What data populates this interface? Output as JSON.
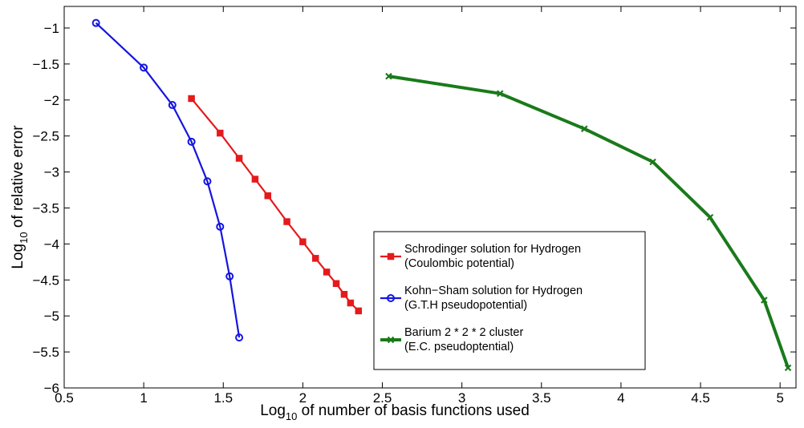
{
  "chart_data": {
    "type": "line",
    "title": "",
    "xlabel": {
      "prefix": "Log",
      "sub": "10",
      "suffix": " of number of basis functions used"
    },
    "ylabel": {
      "prefix": "Log",
      "sub": "10",
      "suffix": " of relative error"
    },
    "xlim": [
      0.5,
      5.1
    ],
    "ylim": [
      -6,
      -0.7
    ],
    "xticks": [
      0.5,
      1,
      1.5,
      2,
      2.5,
      3,
      3.5,
      4,
      4.5,
      5
    ],
    "yticks": [
      -6,
      -5.5,
      -5,
      -4.5,
      -4,
      -3.5,
      -3,
      -2.5,
      -2,
      -1.5,
      -1
    ],
    "grid": false,
    "legend_position": "center-right",
    "series": [
      {
        "name_line1": "Schrodinger solution for Hydrogen",
        "name_line2": "(Coulombic potential)",
        "color": "#e41a1c",
        "marker": "square",
        "line_width": 2.2,
        "x": [
          1.3,
          1.48,
          1.6,
          1.7,
          1.78,
          1.9,
          2.0,
          2.08,
          2.15,
          2.21,
          2.26,
          2.3,
          2.35
        ],
        "y": [
          -1.98,
          -2.46,
          -2.81,
          -3.1,
          -3.33,
          -3.69,
          -3.97,
          -4.2,
          -4.39,
          -4.55,
          -4.7,
          -4.82,
          -4.93
        ]
      },
      {
        "name_line1": "Kohn−Sham solution for Hydrogen",
        "name_line2": "(G.T.H pseudopotential)",
        "color": "#1515e0",
        "marker": "circle",
        "line_width": 2.2,
        "x": [
          0.7,
          1.0,
          1.18,
          1.3,
          1.4,
          1.48,
          1.54,
          1.6
        ],
        "y": [
          -0.93,
          -1.55,
          -2.07,
          -2.58,
          -3.13,
          -3.76,
          -4.45,
          -5.3
        ]
      },
      {
        "name_line1": "Barium 2 * 2 * 2 cluster",
        "name_line2": "(E.C. pseudoptential)",
        "color": "#1a7a1a",
        "marker": "x",
        "line_width": 4,
        "x": [
          2.54,
          3.24,
          3.77,
          4.2,
          4.56,
          4.9,
          5.05
        ],
        "y": [
          -1.67,
          -1.91,
          -2.4,
          -2.86,
          -3.63,
          -4.78,
          -5.72
        ]
      }
    ]
  }
}
